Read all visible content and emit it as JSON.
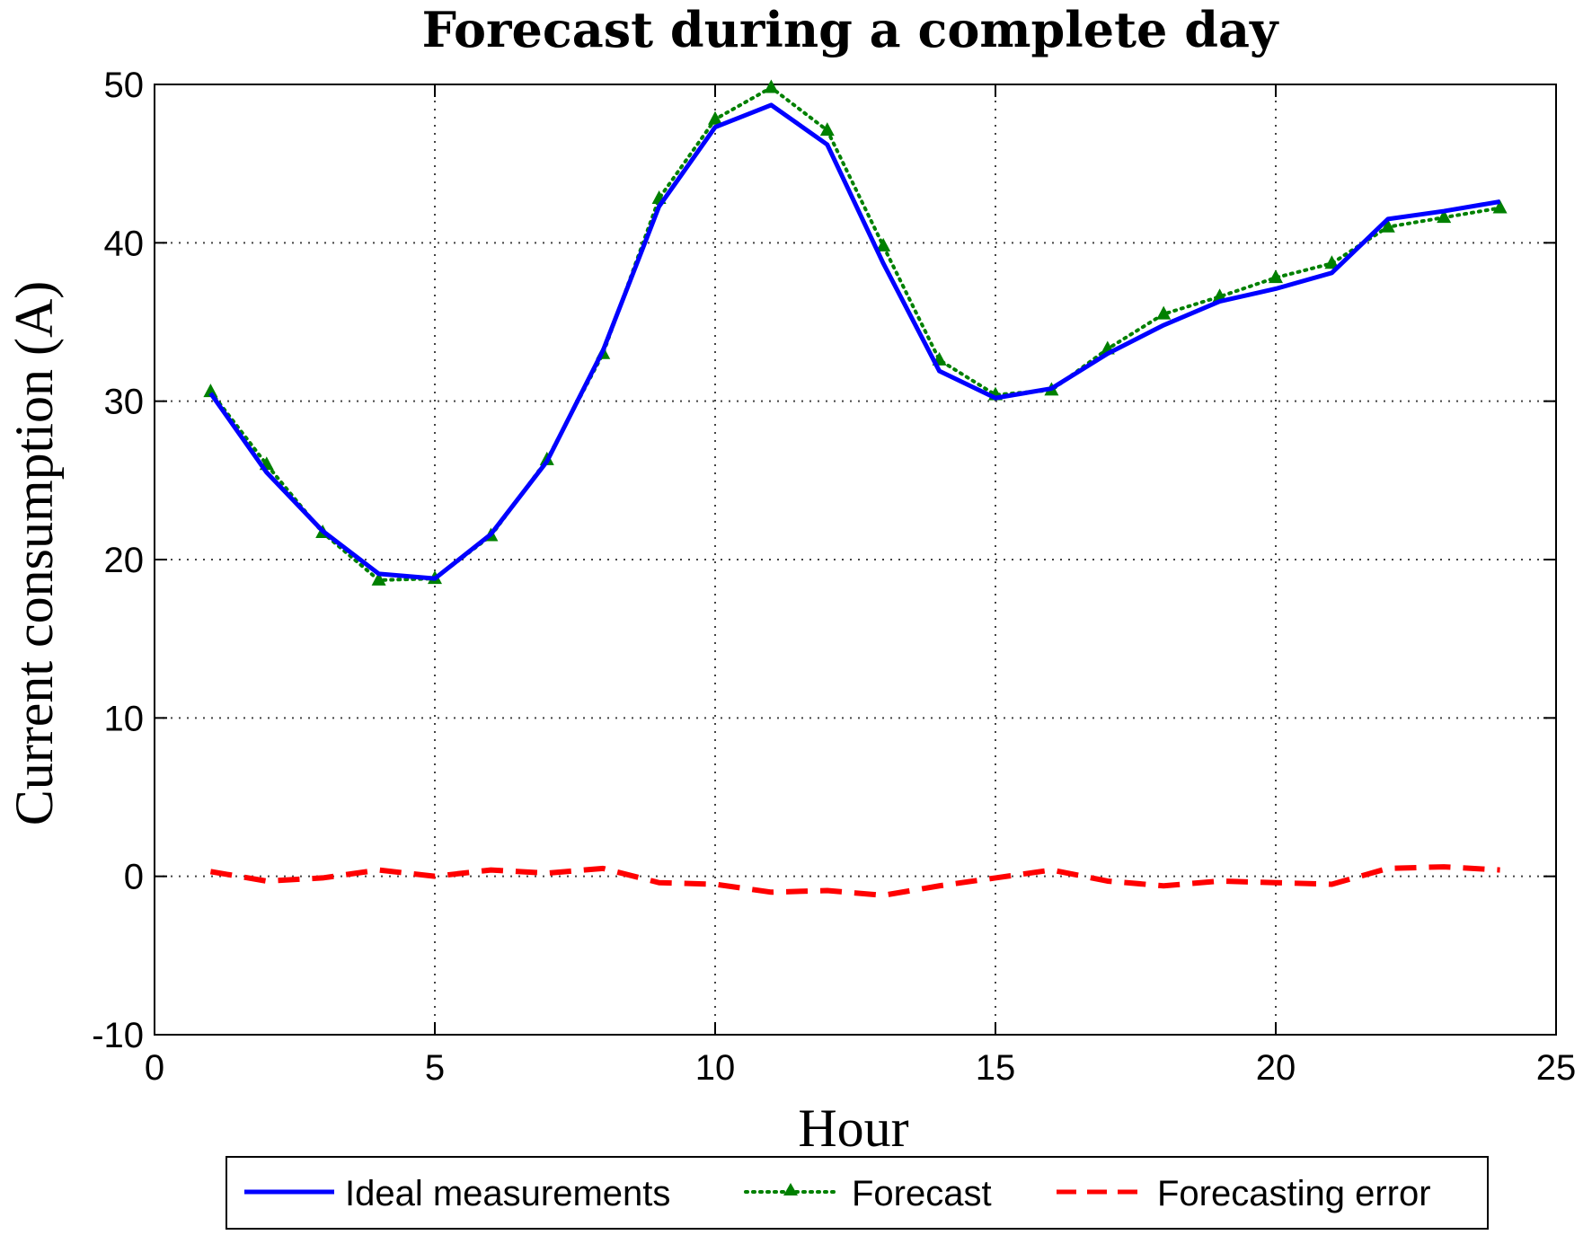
{
  "chart_data": {
    "type": "line",
    "title": "Forecast during a complete day",
    "xlabel": "Hour",
    "ylabel": "Current consumption (A)",
    "xlim": [
      0,
      25
    ],
    "ylim": [
      -10,
      50
    ],
    "xticks": [
      0,
      5,
      10,
      15,
      20,
      25
    ],
    "yticks": [
      -10,
      0,
      10,
      20,
      30,
      40,
      50
    ],
    "grid": true,
    "legend_position": "bottom",
    "x": [
      1,
      2,
      3,
      4,
      5,
      6,
      7,
      8,
      9,
      10,
      11,
      12,
      13,
      14,
      15,
      16,
      17,
      18,
      19,
      20,
      21,
      22,
      23,
      24
    ],
    "series": [
      {
        "name": "Ideal measurements",
        "color": "#0000ff",
        "style": "solid",
        "values": [
          30.5,
          25.5,
          21.8,
          19.1,
          18.8,
          21.6,
          26.2,
          33.2,
          42.3,
          47.3,
          48.7,
          46.2,
          38.7,
          31.9,
          30.2,
          30.8,
          33.0,
          34.8,
          36.3,
          37.1,
          38.1,
          41.5,
          42.0,
          42.6
        ]
      },
      {
        "name": "Forecast",
        "color": "#008000",
        "style": "dotted",
        "marker": "triangle",
        "values": [
          30.6,
          26.0,
          21.7,
          18.7,
          18.8,
          21.5,
          26.3,
          33.0,
          42.8,
          47.8,
          49.8,
          47.1,
          39.8,
          32.6,
          30.4,
          30.7,
          33.3,
          35.5,
          36.6,
          37.8,
          38.7,
          41.0,
          41.6,
          42.2
        ]
      },
      {
        "name": "Forecasting error",
        "color": "#ff0000",
        "style": "dashed",
        "values": [
          0.3,
          -0.3,
          -0.1,
          0.4,
          0.0,
          0.4,
          0.2,
          0.5,
          -0.4,
          -0.5,
          -1.0,
          -0.9,
          -1.2,
          -0.6,
          -0.1,
          0.4,
          -0.3,
          -0.6,
          -0.3,
          -0.4,
          -0.5,
          0.5,
          0.6,
          0.4
        ]
      }
    ]
  }
}
